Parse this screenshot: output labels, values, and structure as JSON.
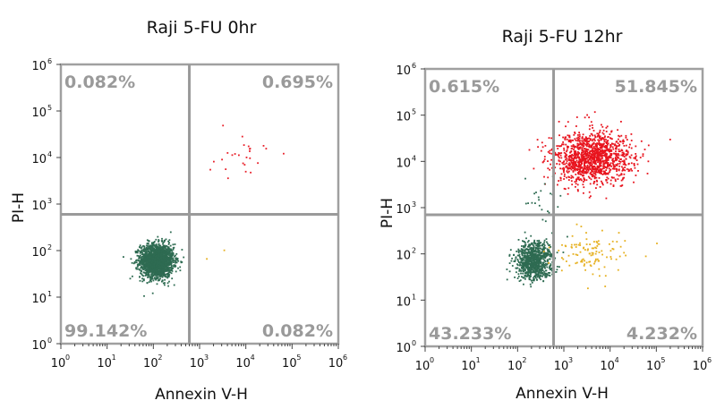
{
  "chart_data": [
    {
      "type": "scatter",
      "title": "Raji 5-FU 0hr",
      "xlabel": "Annexin V-H",
      "ylabel": "PI-H",
      "x_scale": "log",
      "y_scale": "log",
      "xlim": [
        1,
        1000000
      ],
      "ylim": [
        1,
        1000000
      ],
      "tick_base": "10",
      "x_tick_exponents": [
        "0",
        "1",
        "2",
        "3",
        "4",
        "5",
        "6"
      ],
      "y_tick_exponents": [
        "0",
        "1",
        "2",
        "3",
        "4",
        "5",
        "6"
      ],
      "gate": {
        "x": 600,
        "y": 600
      },
      "quadrants": [
        {
          "position": "top-left",
          "label": "0.082%",
          "value": 0.082
        },
        {
          "position": "top-right",
          "label": "0.695%",
          "value": 0.695
        },
        {
          "position": "bottom-left",
          "label": "99.142%",
          "value": 99.142
        },
        {
          "position": "bottom-right",
          "label": "0.082%",
          "value": 0.082
        }
      ],
      "populations": [
        {
          "color": "#2e6b52",
          "center": [
            120,
            60
          ],
          "spread": [
            0.18,
            0.18
          ],
          "count": 1900
        },
        {
          "color": "#e8202a",
          "center": [
            8000,
            10000
          ],
          "spread": [
            0.35,
            0.25
          ],
          "count": 26
        },
        {
          "color": "#e6b020",
          "center": [
            2000,
            80
          ],
          "spread": [
            0.2,
            0.2
          ],
          "count": 2
        }
      ]
    },
    {
      "type": "scatter",
      "title": "Raji 5-FU 12hr",
      "xlabel": "Annexin V-H",
      "ylabel": "PI-H",
      "x_scale": "log",
      "y_scale": "log",
      "xlim": [
        1,
        1000000
      ],
      "ylim": [
        1,
        1000000
      ],
      "tick_base": "10",
      "x_tick_exponents": [
        "0",
        "1",
        "2",
        "3",
        "4",
        "5",
        "6"
      ],
      "y_tick_exponents": [
        "0",
        "1",
        "2",
        "3",
        "4",
        "5",
        "6"
      ],
      "gate": {
        "x": 600,
        "y": 700
      },
      "quadrants": [
        {
          "position": "top-left",
          "label": "0.615%",
          "value": 0.615
        },
        {
          "position": "top-right",
          "label": "51.845%",
          "value": 51.845
        },
        {
          "position": "bottom-left",
          "label": "43.233%",
          "value": 43.233
        },
        {
          "position": "bottom-right",
          "label": "4.232%",
          "value": 4.232
        }
      ],
      "populations": [
        {
          "color": "#e8141e",
          "center": [
            4000,
            12000
          ],
          "spread": [
            0.42,
            0.28
          ],
          "count": 1300
        },
        {
          "color": "#2e6b52",
          "center": [
            230,
            70
          ],
          "spread": [
            0.2,
            0.2
          ],
          "count": 900
        },
        {
          "color": "#e6b020",
          "center": [
            3500,
            110
          ],
          "spread": [
            0.4,
            0.25
          ],
          "count": 110
        },
        {
          "color": "#2e6b52",
          "center": [
            350,
            900
          ],
          "spread": [
            0.25,
            0.4
          ],
          "count": 30
        }
      ]
    }
  ]
}
